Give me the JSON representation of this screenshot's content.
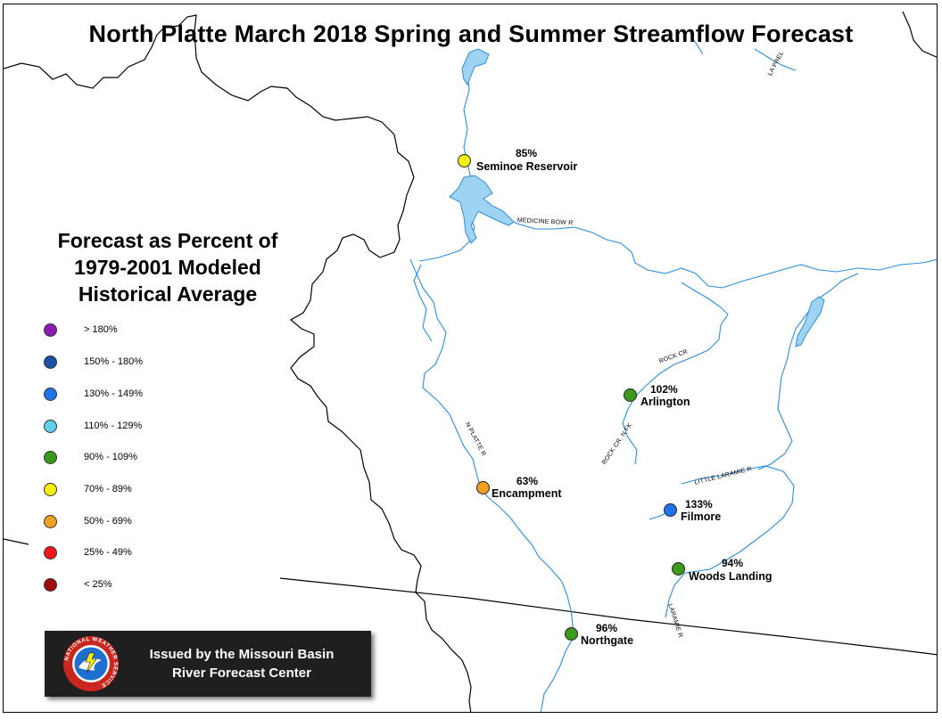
{
  "title": "North Platte March 2018 Spring and Summer Streamflow Forecast",
  "legend": {
    "title_lines": [
      "Forecast as Percent of",
      "1979-2001 Modeled",
      "Historical Average"
    ],
    "items": [
      {
        "label": "> 180%",
        "color": "#8a1cb0"
      },
      {
        "label": "150% - 180%",
        "color": "#1a4fa3"
      },
      {
        "label": "130% - 149%",
        "color": "#1f73e8"
      },
      {
        "label": "110% - 129%",
        "color": "#5ecfe8"
      },
      {
        "label": "90% - 109%",
        "color": "#3a9a1a"
      },
      {
        "label": "70% - 89%",
        "color": "#f5f010"
      },
      {
        "label": "50% - 69%",
        "color": "#f0a020"
      },
      {
        "label": "25% - 49%",
        "color": "#f01818"
      },
      {
        "label": "< 25%",
        "color": "#a00d0d"
      }
    ]
  },
  "stations": [
    {
      "name": "Seminoe Reservoir",
      "percent": "85%",
      "color": "#f5f010"
    },
    {
      "name": "Arlington",
      "percent": "102%",
      "color": "#3a9a1a"
    },
    {
      "name": "Encampment",
      "percent": "63%",
      "color": "#f0a020"
    },
    {
      "name": "Filmore",
      "percent": "133%",
      "color": "#1f73e8"
    },
    {
      "name": "Woods Landing",
      "percent": "94%",
      "color": "#3a9a1a"
    },
    {
      "name": "Northgate",
      "percent": "96%",
      "color": "#3a9a1a"
    }
  ],
  "river_labels": {
    "medicine_bow": "MEDICINE BOW R",
    "rock_cr": "ROCK CR",
    "rock_cr_n_fk": "ROCK CR, N FK",
    "n_platte": "N PLATTE R",
    "little_laramie": "LITTLE LARAMIE R",
    "laramie": "LARAMIE R",
    "la_prele": "LA PREL"
  },
  "badge": {
    "lines": [
      "Issued by the Missouri Basin",
      "River Forecast Center"
    ],
    "logo_text": "NATIONAL WEATHER SERVICE"
  },
  "colors": {
    "river": "#2a8ee0",
    "water_fill": "#9fd3f2",
    "boundary": "#000000"
  }
}
